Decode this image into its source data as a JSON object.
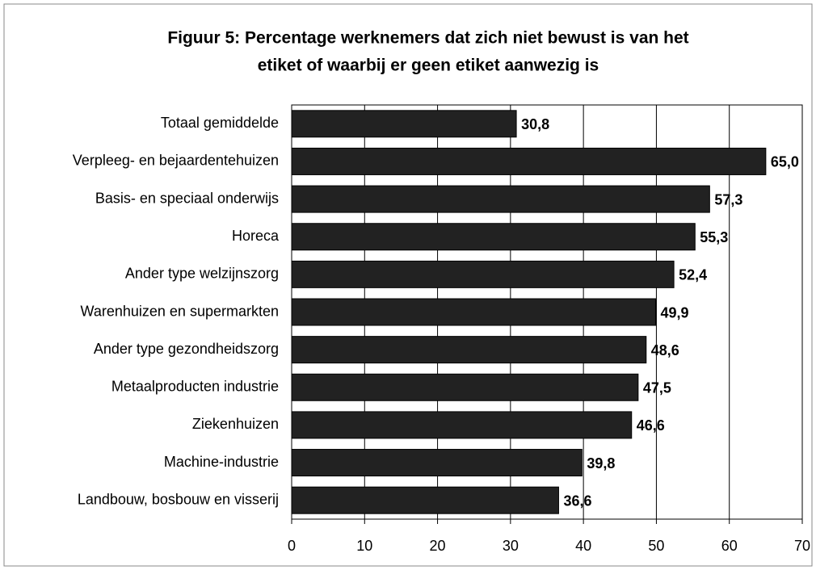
{
  "chart_data": {
    "type": "bar",
    "title": [
      "Figuur 5: Percentage werknemers dat zich niet bewust is van het",
      "etiket of waarbij er geen etiket aanwezig is"
    ],
    "categories": [
      "Totaal gemiddelde",
      "Verpleeg- en bejaardentehuizen",
      "Basis- en speciaal onderwijs",
      "Horeca",
      "Ander type welzijnszorg",
      "Warenhuizen en supermarkten",
      "Ander type gezondheidszorg",
      "Metaalproducten industrie",
      "Ziekenhuizen",
      "Machine-industrie",
      "Landbouw, bosbouw en visserij"
    ],
    "values": [
      30.8,
      65.0,
      57.3,
      55.3,
      52.4,
      49.9,
      48.6,
      47.5,
      46.6,
      39.8,
      36.6
    ],
    "value_labels": [
      "30,8",
      "65,0",
      "57,3",
      "55,3",
      "52,4",
      "49,9",
      "48,6",
      "47,5",
      "46,6",
      "39,8",
      "36,6"
    ],
    "color": "#222222",
    "xlim": [
      0,
      70
    ],
    "xticks": [
      0,
      10,
      20,
      30,
      40,
      50,
      60,
      70
    ],
    "grid": true
  }
}
